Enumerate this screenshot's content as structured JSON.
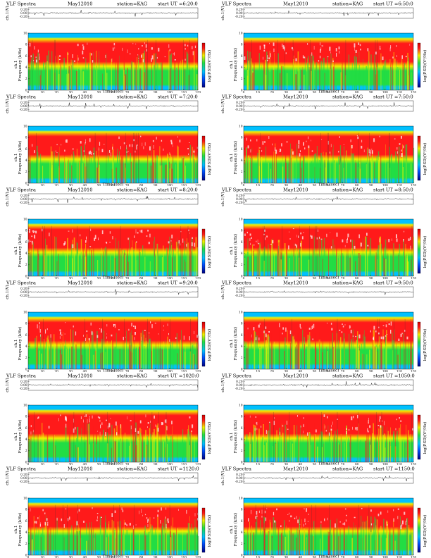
{
  "chart_data": [
    {
      "type": "heatmap",
      "panel": "left-1",
      "title": "VLF Spectra",
      "date": "May12010",
      "station": "station=KAG",
      "start_ut": "start UT =6:20:0"
    },
    {
      "type": "heatmap",
      "panel": "right-1",
      "title": "VLF Spectra",
      "date": "May12010",
      "station": "station=KAG",
      "start_ut": "start UT =6:50:0"
    },
    {
      "type": "heatmap",
      "panel": "left-2",
      "title": "VLF Spectra",
      "date": "May12010",
      "station": "station=KAG",
      "start_ut": "start UT =7:20:0"
    },
    {
      "type": "heatmap",
      "panel": "right-2",
      "title": "VLF Spectra",
      "date": "May12010",
      "station": "station=KAG",
      "start_ut": "start UT =7:50:0"
    },
    {
      "type": "heatmap",
      "panel": "left-3",
      "title": "VLF Spectra",
      "date": "May12010",
      "station": "station=KAG",
      "start_ut": "start UT =8:20:0"
    },
    {
      "type": "heatmap",
      "panel": "right-3",
      "title": "VLF Spectra",
      "date": "May12010",
      "station": "station=KAG",
      "start_ut": "start UT =8:50:0"
    },
    {
      "type": "heatmap",
      "panel": "left-4",
      "title": "VLF Spectra",
      "date": "May12010",
      "station": "station=KAG",
      "start_ut": "start UT =9:20:0"
    },
    {
      "type": "heatmap",
      "panel": "right-4",
      "title": "VLF Spectra",
      "date": "May12010",
      "station": "station=KAG",
      "start_ut": "start UT =9:50:0"
    },
    {
      "type": "heatmap",
      "panel": "left-5",
      "title": "VLF Spectra",
      "date": "May12010",
      "station": "station=KAG",
      "start_ut": "start UT =1020:0"
    },
    {
      "type": "heatmap",
      "panel": "right-5",
      "title": "VLF Spectra",
      "date": "May12010",
      "station": "station=KAG",
      "start_ut": "start UT =1050:0"
    },
    {
      "type": "heatmap",
      "panel": "left-6",
      "title": "VLF Spectra",
      "date": "May12010",
      "station": "station=KAG",
      "start_ut": "start UT =1120:0"
    },
    {
      "type": "heatmap",
      "panel": "right-6",
      "title": "VLF Spectra",
      "date": "May12010",
      "station": "station=KAG",
      "start_ut": "start UT =1150:0"
    }
  ],
  "axes": {
    "waveform_ylabel": "ch.1(V)",
    "waveform_ticks": [
      "0.20",
      "0.00",
      "-0.20"
    ],
    "freq_ylabel_top": "ch.1",
    "freq_ylabel": "Frequency (kHz)",
    "freq_ticks": [
      "0",
      "2",
      "4",
      "6",
      "8",
      "10"
    ],
    "xlabel": "Time (sec)",
    "x_ticks": [
      "0",
      "10",
      "20",
      "30",
      "40",
      "50",
      "60",
      "70",
      "80",
      "90",
      "100",
      "110",
      "120"
    ],
    "xlim": [
      0,
      120
    ],
    "ylim_khz": [
      0,
      10
    ],
    "colorbar_label": "log(PSD)(V²/Hz)"
  },
  "colors": {
    "low": "#00c0ff",
    "mid_low": "#22dd44",
    "mid": "#f2f200",
    "high": "#ff1a1a",
    "peak": "#ffffff"
  }
}
